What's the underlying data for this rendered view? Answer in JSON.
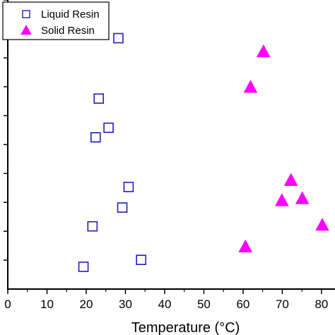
{
  "chart_data": {
    "type": "scatter",
    "title": "",
    "xlabel": "Temperature (°C)",
    "ylabel": "",
    "xlim": [
      0,
      82
    ],
    "ylim": [
      0,
      100
    ],
    "xticks": [
      0,
      10,
      20,
      30,
      40,
      50,
      60,
      70,
      80
    ],
    "yticks": [
      10,
      20,
      30,
      40,
      50,
      60,
      70,
      80,
      90,
      100
    ],
    "y_tick_labels_visible": false,
    "grid": false,
    "legend_position": "top-left",
    "series": [
      {
        "name": "Liquid Resin",
        "marker": "open-square",
        "color": "#1f1fbf",
        "points": [
          {
            "x": 28.2,
            "y": 86.8
          },
          {
            "x": 23.2,
            "y": 65.9
          },
          {
            "x": 25.7,
            "y": 55.8
          },
          {
            "x": 22.4,
            "y": 52.5
          },
          {
            "x": 30.8,
            "y": 35.3
          },
          {
            "x": 29.2,
            "y": 28.2
          },
          {
            "x": 21.6,
            "y": 21.7
          },
          {
            "x": 34.0,
            "y": 10.1
          },
          {
            "x": 19.3,
            "y": 7.7
          }
        ]
      },
      {
        "name": "Solid Resin",
        "marker": "filled-triangle",
        "color": "#ff00ff",
        "points": [
          {
            "x": 65.2,
            "y": 82.2
          },
          {
            "x": 61.9,
            "y": 69.9
          },
          {
            "x": 72.2,
            "y": 37.7
          },
          {
            "x": 69.9,
            "y": 30.7
          },
          {
            "x": 75.1,
            "y": 31.4
          },
          {
            "x": 80.2,
            "y": 22.2
          },
          {
            "x": 60.6,
            "y": 14.7
          }
        ]
      }
    ]
  }
}
